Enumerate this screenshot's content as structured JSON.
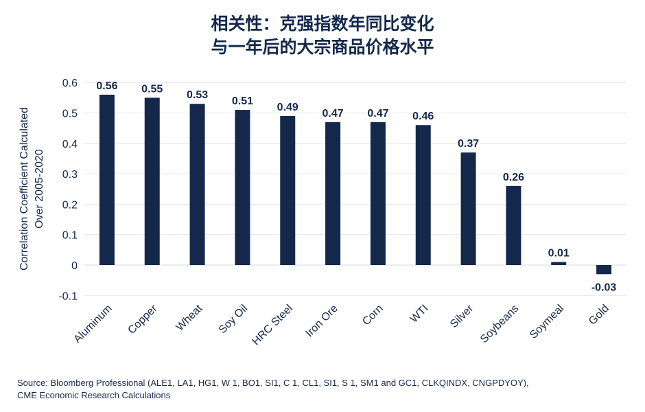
{
  "chart_data": {
    "type": "bar",
    "title_lines": [
      "相关性：克强指数年同比变化",
      "与一年后的大宗商品价格水平"
    ],
    "ylabel_lines": [
      "Correlation Coefficient Calculated",
      "Over 2005-2020"
    ],
    "xlabel": "",
    "categories": [
      "Aluminum",
      "Copper",
      "Wheat",
      "Soy Oil",
      "HRC Steel",
      "Iron Ore",
      "Corn",
      "WTI",
      "Silver",
      "Soybeans",
      "Soymeal",
      "Gold"
    ],
    "values": [
      0.56,
      0.55,
      0.53,
      0.51,
      0.49,
      0.47,
      0.47,
      0.46,
      0.37,
      0.26,
      0.01,
      -0.03
    ],
    "data_labels": [
      "0.56",
      "0.55",
      "0.53",
      "0.51",
      "0.49",
      "0.47",
      "0.47",
      "0.46",
      "0.37",
      "0.26",
      "0.01",
      "-0.03"
    ],
    "yticks": [
      "0.6",
      "0.5",
      "0.4",
      "0.3",
      "0.2",
      "0.1",
      "0",
      "-0.1"
    ],
    "ytick_values": [
      0.6,
      0.5,
      0.4,
      0.3,
      0.2,
      0.1,
      0,
      -0.1
    ],
    "ylim": [
      -0.1,
      0.6
    ],
    "grid": true,
    "legend": "none",
    "bar_color": "#14284b",
    "grid_color": "#e3e6ea",
    "text_color": "#14284b"
  },
  "source_lines": [
    "Source: Bloomberg Professional (ALE1, LA1, HG1, W 1, BO1, SI1, C 1, CL1, SI1, S 1, SM1 and GC1, CLKQINDX, CNGPDYOY),",
    "CME Economic Research Calculations"
  ]
}
